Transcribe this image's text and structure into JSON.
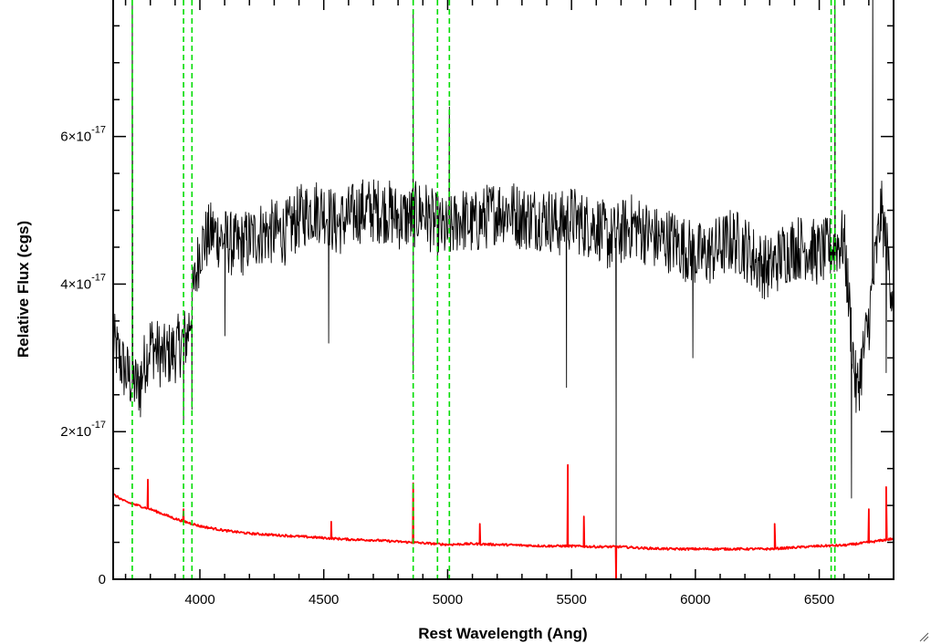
{
  "chart_data": {
    "type": "line",
    "title": "",
    "xlabel": "Rest Wavelength (Ang)",
    "ylabel": "Relative Flux (cgs)",
    "xlim": [
      3650,
      6800
    ],
    "ylim": [
      0,
      7.85e-17
    ],
    "x_ticks": [
      {
        "value": 4000,
        "label": "4000"
      },
      {
        "value": 4500,
        "label": "4500"
      },
      {
        "value": 5000,
        "label": "5000"
      },
      {
        "value": 5500,
        "label": "5500"
      },
      {
        "value": 6000,
        "label": "6000"
      },
      {
        "value": 6500,
        "label": "6500"
      }
    ],
    "y_ticks": [
      {
        "value": 0,
        "mantissa": "0",
        "exponent": ""
      },
      {
        "value": 2e-17,
        "mantissa": "2×10",
        "exponent": "-17"
      },
      {
        "value": 4e-17,
        "mantissa": "4×10",
        "exponent": "-17"
      },
      {
        "value": 6e-17,
        "mantissa": "6×10",
        "exponent": "-17"
      }
    ],
    "grid": false,
    "series": [
      {
        "color": "#000000",
        "style": "noisy spectrum",
        "x": [
          3650,
          3700,
          3750,
          3800,
          3850,
          3900,
          3950,
          4000,
          4050,
          4100,
          4150,
          4200,
          4250,
          4300,
          4350,
          4400,
          4450,
          4500,
          4550,
          4600,
          4650,
          4700,
          4750,
          4800,
          4850,
          4900,
          4950,
          5000,
          5050,
          5100,
          5150,
          5200,
          5250,
          5300,
          5350,
          5400,
          5450,
          5500,
          5550,
          5600,
          5650,
          5700,
          5750,
          5800,
          5850,
          5900,
          5950,
          6000,
          6050,
          6100,
          6150,
          6200,
          6250,
          6300,
          6350,
          6400,
          6450,
          6500,
          6550,
          6600,
          6650,
          6700,
          6750,
          6800
        ],
        "y": [
          3.2e-17,
          2.8e-17,
          2.6e-17,
          3.2e-17,
          3e-17,
          3.1e-17,
          3.3e-17,
          4.5e-17,
          4.7e-17,
          4.6e-17,
          4.5e-17,
          4.6e-17,
          4.7e-17,
          4.7e-17,
          4.7e-17,
          4.9e-17,
          5e-17,
          5e-17,
          4.8e-17,
          4.9e-17,
          5e-17,
          5e-17,
          5e-17,
          4.9e-17,
          4.9e-17,
          5e-17,
          4.8e-17,
          4.7e-17,
          4.9e-17,
          4.8e-17,
          4.9e-17,
          5e-17,
          5e-17,
          4.9e-17,
          4.9e-17,
          4.9e-17,
          4.8e-17,
          4.9e-17,
          4.8e-17,
          4.8e-17,
          4.6e-17,
          4.7e-17,
          4.8e-17,
          4.7e-17,
          4.6e-17,
          4.6e-17,
          4.5e-17,
          4.4e-17,
          4.4e-17,
          4.5e-17,
          4.6e-17,
          4.5e-17,
          4.3e-17,
          4.2e-17,
          4.4e-17,
          4.5e-17,
          4.5e-17,
          4.4e-17,
          4.5e-17,
          4.6e-17,
          2.5e-17,
          3.5e-17,
          5e-17,
          3.8e-17
        ],
        "features": [
          {
            "x": 3727,
            "y": 8.5e-17
          },
          {
            "x": 3760,
            "y": 2.2e-17
          },
          {
            "x": 3934,
            "y": 2.1e-17
          },
          {
            "x": 3968,
            "y": 2.3e-17
          },
          {
            "x": 4101,
            "y": 3.3e-17
          },
          {
            "x": 4520,
            "y": 3.2e-17
          },
          {
            "x": 4861,
            "y": 7.7e-17
          },
          {
            "x": 4861,
            "y": 2.8e-17
          },
          {
            "x": 5007,
            "y": 6.4e-17
          },
          {
            "x": 5480,
            "y": 2.6e-17
          },
          {
            "x": 5680,
            "y": 2.3e-17
          },
          {
            "x": 5680,
            "y": 2e-18
          },
          {
            "x": 5990,
            "y": 3e-17
          },
          {
            "x": 6563,
            "y": 8.5e-17
          },
          {
            "x": 6630,
            "y": 1.1e-17
          },
          {
            "x": 6716,
            "y": 8.5e-17
          },
          {
            "x": 6770,
            "y": 2.8e-17
          }
        ]
      },
      {
        "color": "#ff0000",
        "style": "smooth continuum",
        "x": [
          3650,
          3700,
          3800,
          3900,
          4000,
          4100,
          4200,
          4300,
          4400,
          4500,
          4600,
          4700,
          4800,
          4900,
          5000,
          5100,
          5200,
          5300,
          5400,
          5500,
          5600,
          5700,
          5800,
          5900,
          6000,
          6100,
          6200,
          6300,
          6400,
          6500,
          6600,
          6700,
          6800
        ],
        "y": [
          1.15e-17,
          1.05e-17,
          9.5e-18,
          8.2e-18,
          7.2e-18,
          6.6e-18,
          6.2e-18,
          6e-18,
          5.8e-18,
          5.6e-18,
          5.4e-18,
          5.3e-18,
          5.1e-18,
          4.9e-18,
          4.7e-18,
          4.8e-18,
          4.7e-18,
          4.6e-18,
          4.5e-18,
          4.5e-18,
          4.4e-18,
          4.4e-18,
          4.2e-18,
          4.1e-18,
          4.1e-18,
          4.1e-18,
          4.1e-18,
          4.1e-18,
          4.3e-18,
          4.5e-18,
          4.6e-18,
          5e-18,
          5.5e-18
        ],
        "features": [
          {
            "x": 3790,
            "y": 1.35e-17
          },
          {
            "x": 3934,
            "y": 9.5e-18
          },
          {
            "x": 4530,
            "y": 7.8e-18
          },
          {
            "x": 4861,
            "y": 1.3e-17
          },
          {
            "x": 5130,
            "y": 7.5e-18
          },
          {
            "x": 5485,
            "y": 1.55e-17
          },
          {
            "x": 5550,
            "y": 8.5e-18
          },
          {
            "x": 5680,
            "y": -5e-19
          },
          {
            "x": 6320,
            "y": 7.5e-18
          },
          {
            "x": 6700,
            "y": 9.5e-18
          },
          {
            "x": 6770,
            "y": 1.25e-17
          }
        ]
      }
    ],
    "vlines": {
      "color": "#00dd00",
      "style": "dashed",
      "x": [
        3727,
        3934,
        3968,
        4861,
        4959,
        5007,
        6548,
        6563
      ]
    }
  }
}
